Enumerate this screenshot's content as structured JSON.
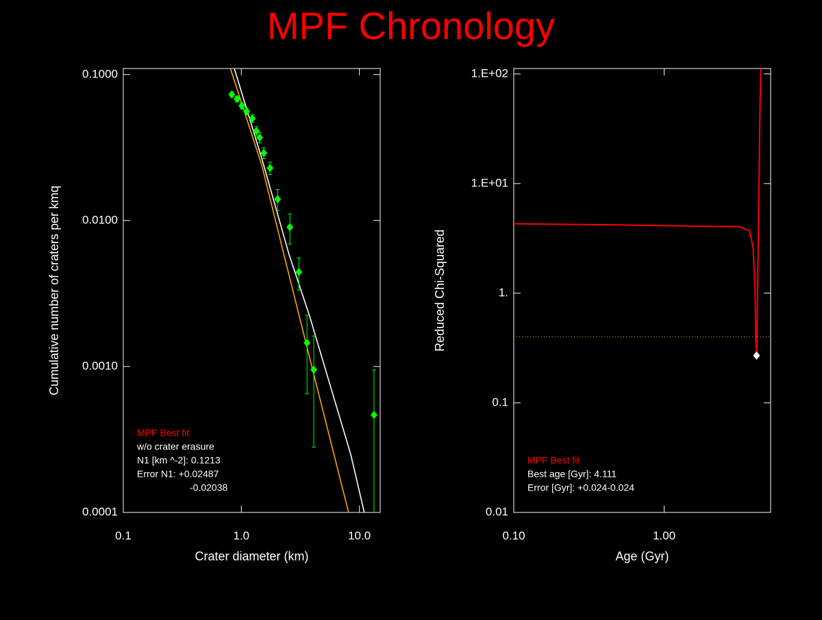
{
  "title": "MPF Chronology",
  "chart_data": [
    {
      "type": "scatter",
      "log_x": true,
      "log_y": true,
      "xlabel": "Crater diameter (km)",
      "ylabel": "Cumulative number of craters per kmq",
      "xlim": [
        0.1,
        15
      ],
      "ylim": [
        0.0001,
        0.11
      ],
      "xticks": [
        0.1,
        {
          "value": 1,
          "label": "1.0"
        },
        {
          "value": 10,
          "label": "10.0"
        }
      ],
      "yticks": [
        {
          "value": 0.1,
          "label": "0.1000"
        },
        {
          "value": 0.01,
          "label": "0.0100"
        },
        {
          "value": 0.001,
          "label": "0.0010"
        },
        0.0001
      ],
      "points": {
        "color": "#00ff00",
        "x": [
          0.83,
          0.92,
          1.01,
          1.11,
          1.24,
          1.34,
          1.43,
          1.55,
          1.75,
          2.03,
          2.58,
          3.07,
          3.6,
          4.11,
          13.3
        ],
        "y": [
          0.073,
          0.068,
          0.061,
          0.056,
          0.05,
          0.041,
          0.037,
          0.029,
          0.0229,
          0.014,
          0.009,
          0.00444,
          0.00145,
          0.00095,
          0.000466
        ],
        "errors": [
          0.003,
          0.003,
          0.003,
          0.003,
          0.003,
          0.003,
          0.003,
          0.0025,
          0.0022,
          0.0023,
          0.0021,
          0.0011,
          0.0008,
          0.00067,
          0.00048
        ]
      },
      "lines": [
        {
          "color": "#ffffff",
          "x": [
            0.875,
            1.49,
            2.54,
            3.8,
            5.66,
            8.44,
            11.0
          ],
          "y": [
            0.109,
            0.0266,
            0.00583,
            0.0022,
            0.00074,
            0.00025,
            0.0001
          ]
        },
        {
          "color": "#ffa500",
          "x": [
            0.81,
            1.49,
            2.54,
            4.34,
            8.1
          ],
          "y": [
            0.109,
            0.0239,
            0.0042,
            0.00074,
            0.0001
          ]
        }
      ],
      "annotations": [
        {
          "text": "MPF Best fit",
          "color": "#ff0000"
        },
        {
          "text": "w/o crater erasure",
          "color": "#ffffff"
        },
        {
          "text": "N1 [km ^-2]: 0.1213",
          "color": "#ffffff"
        },
        {
          "text": "Error N1: +0.02487",
          "color": "#ffffff"
        },
        {
          "text": "-0.02038",
          "color": "#ffffff"
        }
      ]
    },
    {
      "type": "line",
      "log_x": true,
      "log_y": true,
      "xlabel": "Age (Gyr)",
      "ylabel": "Reduced Chi-Squared",
      "xlim": [
        0.1,
        5.1
      ],
      "ylim": [
        0.01,
        112
      ],
      "xticks": [
        {
          "value": 0.1,
          "label": "0.10"
        },
        {
          "value": 1,
          "label": "1.00"
        }
      ],
      "yticks": [
        {
          "value": 100,
          "label": "1.E+02"
        },
        {
          "value": 10,
          "label": "1.E+01"
        },
        {
          "value": 1,
          "label": "1."
        },
        0.1,
        0.01
      ],
      "series": [
        {
          "color": "#ff0000",
          "x": [
            0.1,
            0.48,
            1.37,
            3.16,
            3.7,
            3.9,
            4.02,
            4.07,
            4.111,
            4.15,
            4.25,
            4.34,
            4.39
          ],
          "y": [
            4.3,
            4.2,
            4.1,
            4.05,
            3.7,
            2.6,
            1.08,
            0.39,
            0.27,
            0.45,
            6.2,
            54,
            112
          ]
        }
      ],
      "best": {
        "x": 4.111,
        "y": 0.27,
        "color": "#ffffff"
      },
      "hline": {
        "value": 0.4,
        "color": "#ffa500"
      },
      "annotations": [
        {
          "text": "MPF Best fit",
          "color": "#ff0000"
        },
        {
          "text": "Best age [Gyr]: 4.111",
          "color": "#ffffff"
        },
        {
          "text": "Error [Gyr]: +0.024-0.024",
          "color": "#ffffff"
        }
      ]
    }
  ]
}
